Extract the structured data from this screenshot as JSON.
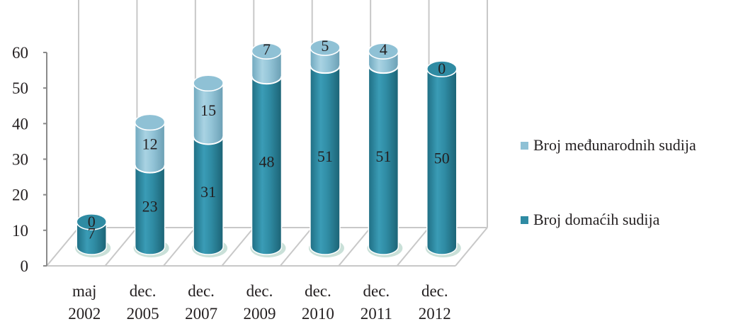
{
  "chart_data": {
    "type": "bar",
    "style": "3d-stacked-cylinder",
    "categories": [
      [
        "maj",
        "2002"
      ],
      [
        "dec.",
        "2005"
      ],
      [
        "dec.",
        "2007"
      ],
      [
        "dec.",
        "2009"
      ],
      [
        "dec.",
        "2010"
      ],
      [
        "dec.",
        "2011"
      ],
      [
        "dec.",
        "2012"
      ]
    ],
    "series": [
      {
        "name": "Broj domaćih sudija",
        "values": [
          7,
          23,
          31,
          48,
          51,
          51,
          50
        ],
        "color": "#2f8ba3"
      },
      {
        "name": "Broj međunarodnih sudija",
        "values": [
          0,
          12,
          15,
          7,
          5,
          4,
          0
        ],
        "color": "#8fc1d5"
      }
    ],
    "ylim": [
      0,
      60
    ],
    "yticks": [
      0,
      10,
      20,
      30,
      40,
      50,
      60
    ],
    "legend_position": "right",
    "legend_order": [
      "Broj međunarodnih sudija",
      "Broj domaćih sudija"
    ],
    "grid": true
  }
}
